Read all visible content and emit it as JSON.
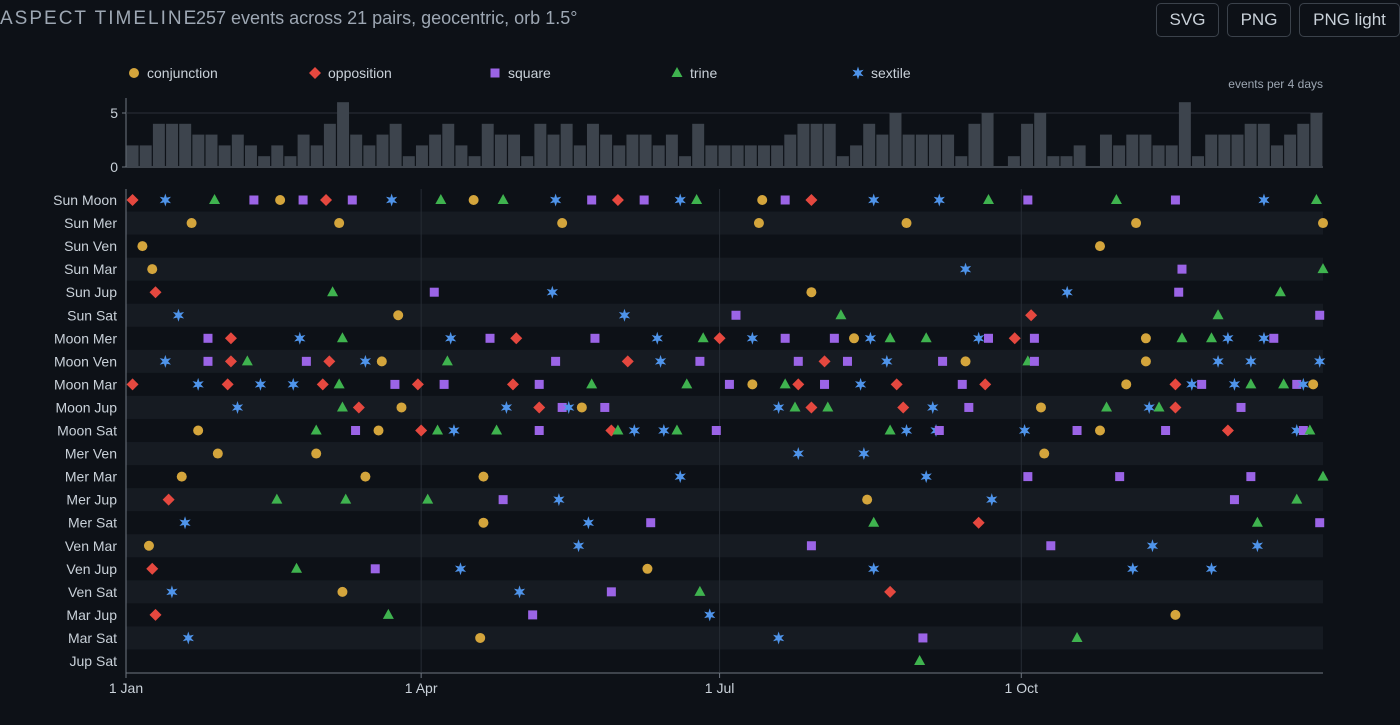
{
  "header": {
    "title": "ASPECT TIMELINE",
    "subtitle": "257 events across 21 pairs, geocentric, orb 1.5°",
    "buttons": {
      "svg": "SVG",
      "png": "PNG",
      "png_light": "PNG light"
    }
  },
  "colors": {
    "background": "#0d1117",
    "conjunction": "#d4a53c",
    "opposition": "#e5483f",
    "square": "#9b64e6",
    "trine": "#3fb34f",
    "sextile": "#4f94ea",
    "histogram_bar": "#3d444d"
  },
  "chart_data": {
    "type": "scatter",
    "legend": [
      "conjunction",
      "opposition",
      "square",
      "trine",
      "sextile"
    ],
    "legend_placement": "top",
    "histogram_label": "events per 4 days",
    "histogram_ylim": [
      0,
      6
    ],
    "histogram_yticks": [
      0,
      5
    ],
    "histogram_counts": [
      2,
      2,
      4,
      4,
      4,
      3,
      3,
      2,
      3,
      2,
      1,
      2,
      1,
      3,
      2,
      4,
      6,
      3,
      2,
      3,
      4,
      1,
      2,
      3,
      4,
      2,
      1,
      4,
      3,
      3,
      1,
      4,
      3,
      4,
      2,
      4,
      3,
      2,
      3,
      3,
      2,
      3,
      1,
      4,
      2,
      2,
      2,
      2,
      2,
      2,
      3,
      4,
      4,
      4,
      1,
      2,
      4,
      3,
      5,
      3,
      3,
      3,
      3,
      1,
      4,
      5,
      0,
      1,
      4,
      5,
      1,
      1,
      2,
      0,
      3,
      2,
      3,
      3,
      2,
      2,
      6,
      1,
      3,
      3,
      3,
      4,
      4,
      2,
      3,
      4,
      5
    ],
    "x_range_days": [
      0,
      365
    ],
    "x_ticks": [
      {
        "label": "1 Jan",
        "day": 0
      },
      {
        "label": "1 Apr",
        "day": 90
      },
      {
        "label": "1 Jul",
        "day": 181
      },
      {
        "label": "1 Oct",
        "day": 273
      }
    ],
    "rows": [
      "Sun Moon",
      "Sun Mer",
      "Sun Ven",
      "Sun Mar",
      "Sun Jup",
      "Sun Sat",
      "Moon Mer",
      "Moon Ven",
      "Moon Mar",
      "Moon Jup",
      "Moon Sat",
      "Mer Ven",
      "Mer Mar",
      "Mer Jup",
      "Mer Sat",
      "Ven Mar",
      "Ven Jup",
      "Ven Sat",
      "Mar Jup",
      "Mar Sat",
      "Jup Sat"
    ],
    "events": [
      {
        "row": "Sun Moon",
        "points": [
          [
            2,
            "o"
          ],
          [
            12,
            "x"
          ],
          [
            27,
            "t"
          ],
          [
            39,
            "s"
          ],
          [
            47,
            "c"
          ],
          [
            54,
            "s"
          ],
          [
            61,
            "o"
          ],
          [
            69,
            "s"
          ],
          [
            81,
            "x"
          ],
          [
            96,
            "t"
          ],
          [
            106,
            "c"
          ],
          [
            115,
            "t"
          ],
          [
            131,
            "x"
          ],
          [
            142,
            "s"
          ],
          [
            150,
            "o"
          ],
          [
            158,
            "s"
          ],
          [
            169,
            "x"
          ],
          [
            174,
            "t"
          ],
          [
            194,
            "c"
          ],
          [
            201,
            "s"
          ],
          [
            209,
            "o"
          ],
          [
            228,
            "x"
          ],
          [
            248,
            "x"
          ],
          [
            263,
            "t"
          ],
          [
            275,
            "s"
          ],
          [
            302,
            "t"
          ],
          [
            320,
            "s"
          ],
          [
            347,
            "x"
          ],
          [
            363,
            "t"
          ]
        ]
      },
      {
        "row": "Sun Mer",
        "points": [
          [
            20,
            "c"
          ],
          [
            65,
            "c"
          ],
          [
            133,
            "c"
          ],
          [
            193,
            "c"
          ],
          [
            238,
            "c"
          ],
          [
            308,
            "c"
          ],
          [
            365,
            "c"
          ]
        ]
      },
      {
        "row": "Sun Ven",
        "points": [
          [
            5,
            "c"
          ],
          [
            297,
            "c"
          ]
        ]
      },
      {
        "row": "Sun Mar",
        "points": [
          [
            8,
            "c"
          ],
          [
            256,
            "x"
          ],
          [
            322,
            "s"
          ],
          [
            365,
            "t"
          ]
        ]
      },
      {
        "row": "Sun Jup",
        "points": [
          [
            9,
            "o"
          ],
          [
            63,
            "t"
          ],
          [
            94,
            "s"
          ],
          [
            130,
            "x"
          ],
          [
            209,
            "c"
          ],
          [
            287,
            "x"
          ],
          [
            321,
            "s"
          ],
          [
            352,
            "t"
          ]
        ]
      },
      {
        "row": "Sun Sat",
        "points": [
          [
            16,
            "x"
          ],
          [
            83,
            "c"
          ],
          [
            152,
            "x"
          ],
          [
            186,
            "s"
          ],
          [
            218,
            "t"
          ],
          [
            276,
            "o"
          ],
          [
            333,
            "t"
          ],
          [
            364,
            "s"
          ]
        ]
      },
      {
        "row": "Moon Mer",
        "points": [
          [
            25,
            "s"
          ],
          [
            32,
            "o"
          ],
          [
            53,
            "x"
          ],
          [
            66,
            "t"
          ],
          [
            99,
            "x"
          ],
          [
            111,
            "s"
          ],
          [
            119,
            "o"
          ],
          [
            143,
            "s"
          ],
          [
            162,
            "x"
          ],
          [
            176,
            "t"
          ],
          [
            181,
            "o"
          ],
          [
            191,
            "x"
          ],
          [
            201,
            "s"
          ],
          [
            216,
            "s"
          ],
          [
            222,
            "c"
          ],
          [
            227,
            "x"
          ],
          [
            233,
            "t"
          ],
          [
            244,
            "t"
          ],
          [
            260,
            "x"
          ],
          [
            263,
            "s"
          ],
          [
            271,
            "o"
          ],
          [
            277,
            "s"
          ],
          [
            311,
            "c"
          ],
          [
            322,
            "t"
          ],
          [
            331,
            "t"
          ],
          [
            336,
            "x"
          ],
          [
            347,
            "x"
          ],
          [
            350,
            "s"
          ]
        ]
      },
      {
        "row": "Moon Ven",
        "points": [
          [
            12,
            "x"
          ],
          [
            25,
            "s"
          ],
          [
            32,
            "o"
          ],
          [
            37,
            "t"
          ],
          [
            55,
            "s"
          ],
          [
            62,
            "o"
          ],
          [
            73,
            "x"
          ],
          [
            78,
            "c"
          ],
          [
            98,
            "t"
          ],
          [
            131,
            "s"
          ],
          [
            153,
            "o"
          ],
          [
            163,
            "x"
          ],
          [
            175,
            "s"
          ],
          [
            205,
            "s"
          ],
          [
            213,
            "o"
          ],
          [
            220,
            "s"
          ],
          [
            232,
            "x"
          ],
          [
            249,
            "s"
          ],
          [
            256,
            "c"
          ],
          [
            275,
            "t"
          ],
          [
            277,
            "s"
          ],
          [
            311,
            "c"
          ],
          [
            333,
            "x"
          ],
          [
            343,
            "x"
          ],
          [
            364,
            "x"
          ]
        ]
      },
      {
        "row": "Moon Mar",
        "points": [
          [
            2,
            "o"
          ],
          [
            22,
            "x"
          ],
          [
            31,
            "o"
          ],
          [
            41,
            "x"
          ],
          [
            51,
            "x"
          ],
          [
            60,
            "o"
          ],
          [
            65,
            "t"
          ],
          [
            82,
            "s"
          ],
          [
            89,
            "o"
          ],
          [
            97,
            "s"
          ],
          [
            118,
            "o"
          ],
          [
            126,
            "s"
          ],
          [
            142,
            "t"
          ],
          [
            171,
            "t"
          ],
          [
            184,
            "s"
          ],
          [
            191,
            "c"
          ],
          [
            201,
            "t"
          ],
          [
            205,
            "o"
          ],
          [
            213,
            "s"
          ],
          [
            224,
            "x"
          ],
          [
            235,
            "o"
          ],
          [
            255,
            "s"
          ],
          [
            262,
            "o"
          ],
          [
            305,
            "c"
          ],
          [
            320,
            "o"
          ],
          [
            325,
            "x"
          ],
          [
            328,
            "s"
          ],
          [
            338,
            "x"
          ],
          [
            343,
            "t"
          ],
          [
            353,
            "t"
          ],
          [
            357,
            "s"
          ],
          [
            359,
            "x"
          ],
          [
            362,
            "c"
          ]
        ]
      },
      {
        "row": "Moon Jup",
        "points": [
          [
            34,
            "x"
          ],
          [
            66,
            "t"
          ],
          [
            71,
            "o"
          ],
          [
            84,
            "c"
          ],
          [
            116,
            "x"
          ],
          [
            126,
            "o"
          ],
          [
            133,
            "s"
          ],
          [
            135,
            "x"
          ],
          [
            139,
            "c"
          ],
          [
            146,
            "s"
          ],
          [
            199,
            "x"
          ],
          [
            204,
            "t"
          ],
          [
            209,
            "o"
          ],
          [
            214,
            "t"
          ],
          [
            237,
            "o"
          ],
          [
            246,
            "x"
          ],
          [
            257,
            "s"
          ],
          [
            279,
            "c"
          ],
          [
            299,
            "t"
          ],
          [
            312,
            "x"
          ],
          [
            315,
            "t"
          ],
          [
            320,
            "o"
          ],
          [
            340,
            "s"
          ]
        ]
      },
      {
        "row": "Moon Sat",
        "points": [
          [
            22,
            "c"
          ],
          [
            58,
            "t"
          ],
          [
            70,
            "s"
          ],
          [
            77,
            "c"
          ],
          [
            90,
            "o"
          ],
          [
            95,
            "t"
          ],
          [
            100,
            "x"
          ],
          [
            113,
            "t"
          ],
          [
            126,
            "s"
          ],
          [
            148,
            "o"
          ],
          [
            150,
            "t"
          ],
          [
            155,
            "x"
          ],
          [
            164,
            "x"
          ],
          [
            168,
            "t"
          ],
          [
            180,
            "s"
          ],
          [
            233,
            "t"
          ],
          [
            238,
            "x"
          ],
          [
            247,
            "x"
          ],
          [
            248,
            "s"
          ],
          [
            274,
            "x"
          ],
          [
            290,
            "s"
          ],
          [
            297,
            "c"
          ],
          [
            317,
            "s"
          ],
          [
            336,
            "o"
          ],
          [
            357,
            "x"
          ],
          [
            359,
            "s"
          ],
          [
            361,
            "t"
          ]
        ]
      },
      {
        "row": "Mer Ven",
        "points": [
          [
            28,
            "c"
          ],
          [
            58,
            "c"
          ],
          [
            205,
            "x"
          ],
          [
            225,
            "x"
          ],
          [
            280,
            "c"
          ]
        ]
      },
      {
        "row": "Mer Mar",
        "points": [
          [
            17,
            "c"
          ],
          [
            73,
            "c"
          ],
          [
            109,
            "c"
          ],
          [
            169,
            "x"
          ],
          [
            244,
            "x"
          ],
          [
            275,
            "s"
          ],
          [
            303,
            "s"
          ],
          [
            343,
            "s"
          ],
          [
            365,
            "t"
          ]
        ]
      },
      {
        "row": "Mer Jup",
        "points": [
          [
            13,
            "o"
          ],
          [
            46,
            "t"
          ],
          [
            67,
            "t"
          ],
          [
            92,
            "t"
          ],
          [
            115,
            "s"
          ],
          [
            132,
            "x"
          ],
          [
            226,
            "c"
          ],
          [
            264,
            "x"
          ],
          [
            338,
            "s"
          ],
          [
            357,
            "t"
          ]
        ]
      },
      {
        "row": "Mer Sat",
        "points": [
          [
            18,
            "x"
          ],
          [
            109,
            "c"
          ],
          [
            141,
            "x"
          ],
          [
            160,
            "s"
          ],
          [
            228,
            "t"
          ],
          [
            260,
            "o"
          ],
          [
            345,
            "t"
          ],
          [
            364,
            "s"
          ]
        ]
      },
      {
        "row": "Ven Mar",
        "points": [
          [
            7,
            "c"
          ],
          [
            138,
            "x"
          ],
          [
            209,
            "s"
          ],
          [
            282,
            "s"
          ],
          [
            313,
            "x"
          ],
          [
            345,
            "x"
          ]
        ]
      },
      {
        "row": "Ven Jup",
        "points": [
          [
            8,
            "o"
          ],
          [
            52,
            "t"
          ],
          [
            76,
            "s"
          ],
          [
            102,
            "x"
          ],
          [
            159,
            "c"
          ],
          [
            228,
            "x"
          ],
          [
            307,
            "x"
          ],
          [
            331,
            "x"
          ]
        ]
      },
      {
        "row": "Ven Sat",
        "points": [
          [
            14,
            "x"
          ],
          [
            66,
            "c"
          ],
          [
            120,
            "x"
          ],
          [
            148,
            "s"
          ],
          [
            175,
            "t"
          ],
          [
            233,
            "o"
          ]
        ]
      },
      {
        "row": "Mar Jup",
        "points": [
          [
            9,
            "o"
          ],
          [
            80,
            "t"
          ],
          [
            124,
            "s"
          ],
          [
            178,
            "x"
          ],
          [
            320,
            "c"
          ]
        ]
      },
      {
        "row": "Mar Sat",
        "points": [
          [
            19,
            "x"
          ],
          [
            108,
            "c"
          ],
          [
            199,
            "x"
          ],
          [
            243,
            "s"
          ],
          [
            290,
            "t"
          ]
        ]
      },
      {
        "row": "Jup Sat",
        "points": [
          [
            242,
            "t"
          ]
        ]
      }
    ]
  }
}
